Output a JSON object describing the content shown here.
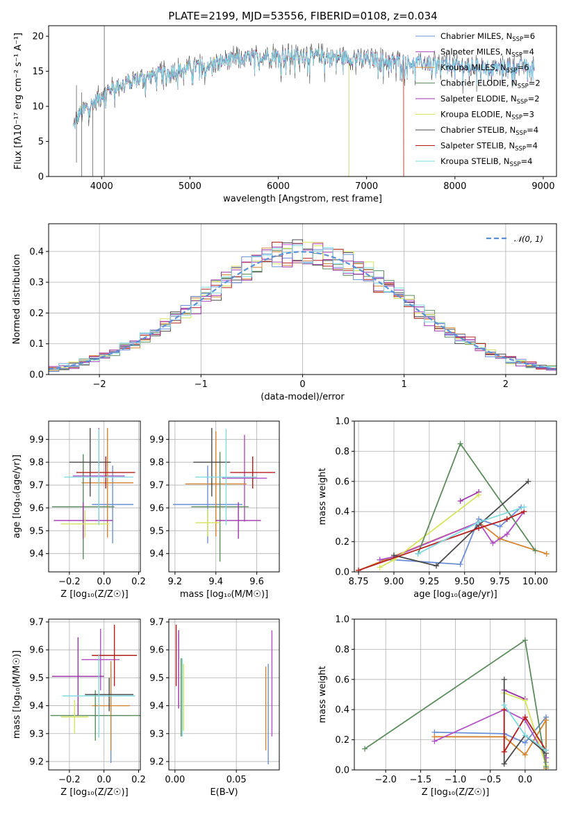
{
  "title": "PLATE=2199, MJD=53556, FIBERID=0108, z=0.034",
  "colors": [
    "#6b8fd6",
    "#b04fc4",
    "#d4832e",
    "#5c8c5c",
    "#9a33a8",
    "#d6e35c",
    "#4a4a4a",
    "#b51c1c",
    "#7fd9df"
  ],
  "chart_data": [
    {
      "id": "spectrum",
      "type": "line",
      "xlabel": "wavelength [Angstrom, rest frame]",
      "ylabel": "Flux [fλ10⁻¹⁷ erg cm⁻² s⁻¹ A⁻¹]",
      "xlim": [
        3400,
        9150
      ],
      "ylim": [
        0,
        21.5
      ],
      "xticks": [
        "4000",
        "5000",
        "6000",
        "7000",
        "8000",
        "9000"
      ],
      "xtickvals": [
        4000,
        5000,
        6000,
        7000,
        8000,
        9000
      ],
      "yticks": [
        "0",
        "5",
        "10",
        "15",
        "20"
      ],
      "ytickvals": [
        0,
        5,
        10,
        15,
        20
      ],
      "legend_position": "upper-right",
      "series": [
        {
          "name": "Chabrier MILES, N_SSP=6",
          "legend": "Chabrier MILES, N",
          "sub": "SSP",
          "suffix": "=6"
        },
        {
          "name": "Salpeter MILES, N_SSP=4",
          "legend": "Salpeter MILES, N",
          "sub": "SSP",
          "suffix": "=4"
        },
        {
          "name": "Kroupa MILES, N_SSP=6",
          "legend": "Kroupa MILES, N",
          "sub": "SSP",
          "suffix": "=6"
        },
        {
          "name": "Chabrier ELODIE, N_SSP=2",
          "legend": "Chabrier ELODIE, N",
          "sub": "SSP",
          "suffix": "=2"
        },
        {
          "name": "Salpeter ELODIE, N_SSP=2",
          "legend": "Salpeter ELODIE, N",
          "sub": "SSP",
          "suffix": "=2"
        },
        {
          "name": "Kroupa ELODIE, N_SSP=3",
          "legend": "Kroupa ELODIE, N",
          "sub": "SSP",
          "suffix": "=3"
        },
        {
          "name": "Chabrier STELIB, N_SSP=4",
          "legend": "Chabrier STELIB, N",
          "sub": "SSP",
          "suffix": "=4"
        },
        {
          "name": "Salpeter STELIB, N_SSP=4",
          "legend": "Salpeter STELIB, N",
          "sub": "SSP",
          "suffix": "=4"
        },
        {
          "name": "Kroupa STELIB, N_SSP=4",
          "legend": "Kroupa STELIB, N",
          "sub": "SSP",
          "suffix": "=4"
        }
      ],
      "continuum": [
        [
          3680,
          7
        ],
        [
          3750,
          9
        ],
        [
          3900,
          10.5
        ],
        [
          4000,
          11.5
        ],
        [
          4100,
          12.5
        ],
        [
          4300,
          13.5
        ],
        [
          4600,
          14.5
        ],
        [
          5000,
          15.5
        ],
        [
          5500,
          16.8
        ],
        [
          6000,
          17.3
        ],
        [
          6500,
          17.2
        ],
        [
          7000,
          16.8
        ],
        [
          7500,
          16.3
        ],
        [
          8000,
          15.8
        ],
        [
          8500,
          15.6
        ],
        [
          8900,
          15.8
        ]
      ]
    },
    {
      "id": "residuals",
      "type": "histogram",
      "xlabel": "(data-model)/error",
      "ylabel": "Normed distribution",
      "xlim": [
        -2.5,
        2.5
      ],
      "ylim": [
        0,
        0.49
      ],
      "xticks": [
        "−2",
        "−1",
        "0",
        "1",
        "2"
      ],
      "xtickvals": [
        -2,
        -1,
        0,
        1,
        2
      ],
      "yticks": [
        "0.0",
        "0.1",
        "0.2",
        "0.3",
        "0.4"
      ],
      "ytickvals": [
        0,
        0.1,
        0.2,
        0.3,
        0.4
      ],
      "bin_width": 0.1,
      "legend": "𝒩(0, 1)",
      "legend_position": "upper-right",
      "grid": true
    },
    {
      "id": "age-vs-Z",
      "type": "errorbar",
      "xlabel": "Z [log₁₀(Z/Z☉)]",
      "ylabel": "age  [log₁₀(age/yr)]",
      "xlim": [
        -0.32,
        0.21
      ],
      "ylim": [
        9.32,
        9.98
      ],
      "xticks": [
        "−0.2",
        "0.0",
        "0.2"
      ],
      "xtickvals": [
        -0.2,
        0,
        0.2
      ],
      "yticks": [
        "9.4",
        "9.5",
        "9.6",
        "9.7",
        "9.8",
        "9.9"
      ],
      "ytickvals": [
        9.4,
        9.5,
        9.6,
        9.7,
        9.8,
        9.9
      ],
      "grid": true,
      "points": [
        {
          "x": 0.05,
          "xerr": 0.12,
          "y": 9.615,
          "yerr": 0.17,
          "c": 0
        },
        {
          "x": -0.03,
          "xerr": 0.15,
          "y": 9.74,
          "yerr": 0.21,
          "c": 1
        },
        {
          "x": 0.02,
          "xerr": 0.15,
          "y": 9.71,
          "yerr": 0.24,
          "c": 2
        },
        {
          "x": -0.12,
          "xerr": 0.18,
          "y": 9.605,
          "yerr": 0.23,
          "c": 3
        },
        {
          "x": -0.12,
          "xerr": 0.17,
          "y": 9.545,
          "yerr": 0.08,
          "c": 4
        },
        {
          "x": -0.11,
          "xerr": 0.14,
          "y": 9.53,
          "yerr": 0.06,
          "c": 5
        },
        {
          "x": -0.08,
          "xerr": 0.12,
          "y": 9.8,
          "yerr": 0.15,
          "c": 6
        },
        {
          "x": 0.01,
          "xerr": 0.17,
          "y": 9.755,
          "yerr": 0.07,
          "c": 7
        },
        {
          "x": -0.03,
          "xerr": 0.2,
          "y": 9.735,
          "yerr": 0.21,
          "c": 8
        }
      ]
    },
    {
      "id": "age-vs-mass",
      "type": "errorbar",
      "xlabel": "mass [log₁₀(M/M☉)]",
      "ylabel": "",
      "xlim": [
        9.17,
        9.71
      ],
      "ylim": [
        9.32,
        9.98
      ],
      "xticks": [
        "9.2",
        "9.4",
        "9.6"
      ],
      "xtickvals": [
        9.2,
        9.4,
        9.6
      ],
      "yticks": [
        "9.4",
        "9.5",
        "9.6",
        "9.7",
        "9.8",
        "9.9"
      ],
      "ytickvals": [
        9.4,
        9.5,
        9.6,
        9.7,
        9.8,
        9.9
      ],
      "grid": true,
      "points": [
        {
          "x": 9.36,
          "xerr": 0.17,
          "y": 9.615,
          "yerr": 0.17,
          "c": 0
        },
        {
          "x": 9.54,
          "xerr": 0.11,
          "y": 9.73,
          "yerr": 0.19,
          "c": 1
        },
        {
          "x": 9.4,
          "xerr": 0.15,
          "y": 9.705,
          "yerr": 0.23,
          "c": 2
        },
        {
          "x": 9.42,
          "xerr": 0.14,
          "y": 9.605,
          "yerr": 0.24,
          "c": 3
        },
        {
          "x": 9.51,
          "xerr": 0.11,
          "y": 9.545,
          "yerr": 0.08,
          "c": 4
        },
        {
          "x": 9.36,
          "xerr": 0.06,
          "y": 9.535,
          "yerr": 0.06,
          "c": 5
        },
        {
          "x": 9.38,
          "xerr": 0.09,
          "y": 9.8,
          "yerr": 0.15,
          "c": 6
        },
        {
          "x": 9.58,
          "xerr": 0.11,
          "y": 9.755,
          "yerr": 0.07,
          "c": 7
        },
        {
          "x": 9.45,
          "xerr": 0.15,
          "y": 9.735,
          "yerr": 0.21,
          "c": 8
        }
      ]
    },
    {
      "id": "weight-vs-age",
      "type": "line",
      "xlabel": "age  [log₁₀(age/yr)]",
      "ylabel": "mass weight",
      "xlim": [
        8.72,
        10.15
      ],
      "ylim": [
        0,
        1
      ],
      "xticks": [
        "8.75",
        "9.00",
        "9.25",
        "9.50",
        "9.75",
        "10.00"
      ],
      "xtickvals": [
        8.75,
        9.0,
        9.25,
        9.5,
        9.75,
        10.0
      ],
      "yticks": [
        "0.0",
        "0.2",
        "0.4",
        "0.6",
        "0.8",
        "1.0"
      ],
      "ytickvals": [
        0,
        0.2,
        0.4,
        0.6,
        0.8,
        1.0
      ],
      "grid": true,
      "series": [
        {
          "c": 0,
          "pts": [
            [
              8.9,
              0.08
            ],
            [
              9.0,
              0.08
            ],
            [
              9.47,
              0.05
            ],
            [
              9.6,
              0.35
            ],
            [
              9.75,
              0.3
            ],
            [
              9.9,
              0.43
            ]
          ]
        },
        {
          "c": 2,
          "pts": [
            [
              8.75,
              0.01
            ],
            [
              9.6,
              0.33
            ],
            [
              9.75,
              0.22
            ],
            [
              10.08,
              0.12
            ]
          ]
        },
        {
          "c": 1,
          "pts": [
            [
              8.9,
              0.08
            ],
            [
              9.0,
              0.1
            ],
            [
              9.6,
              0.33
            ],
            [
              9.7,
              0.19
            ],
            [
              9.8,
              0.25
            ],
            [
              9.92,
              0.4
            ]
          ]
        },
        {
          "c": 4,
          "pts": [
            [
              9.47,
              0.47
            ],
            [
              9.6,
              0.53
            ]
          ]
        },
        {
          "c": 5,
          "pts": [
            [
              8.9,
              0.03
            ],
            [
              9.0,
              0.08
            ],
            [
              9.6,
              0.51
            ]
          ]
        },
        {
          "c": 3,
          "pts": [
            [
              9.17,
              0.12
            ],
            [
              9.47,
              0.85
            ],
            [
              10.0,
              0.14
            ]
          ]
        },
        {
          "c": 6,
          "pts": [
            [
              9.0,
              0.11
            ],
            [
              9.3,
              0.04
            ],
            [
              9.6,
              0.31
            ],
            [
              9.95,
              0.6
            ]
          ]
        },
        {
          "c": 7,
          "pts": [
            [
              8.75,
              0.01
            ],
            [
              9.6,
              0.29
            ],
            [
              9.8,
              0.35
            ],
            [
              9.92,
              0.4
            ]
          ]
        },
        {
          "c": 8,
          "pts": [
            [
              9.17,
              0.12
            ],
            [
              9.6,
              0.33
            ],
            [
              9.92,
              0.43
            ]
          ]
        }
      ]
    },
    {
      "id": "mass-vs-Z",
      "type": "errorbar",
      "xlabel": "Z [log₁₀(Z/Z☉)]",
      "ylabel": "mass [log₁₀(M/M☉)]",
      "xlim": [
        -0.32,
        0.21
      ],
      "ylim": [
        9.17,
        9.71
      ],
      "xticks": [
        "−0.2",
        "0.0",
        "0.2"
      ],
      "xtickvals": [
        -0.2,
        0,
        0.2
      ],
      "yticks": [
        "9.2",
        "9.3",
        "9.4",
        "9.5",
        "9.6",
        "9.7"
      ],
      "ytickvals": [
        9.2,
        9.3,
        9.4,
        9.5,
        9.6,
        9.7
      ],
      "grid": true,
      "points": [
        {
          "x": 0.04,
          "xerr": 0.11,
          "y": 9.365,
          "yerr": 0.17,
          "c": 0
        },
        {
          "x": -0.02,
          "xerr": 0.11,
          "y": 9.565,
          "yerr": 0.11,
          "c": 1
        },
        {
          "x": 0.04,
          "xerr": 0.11,
          "y": 9.4,
          "yerr": 0.16,
          "c": 2
        },
        {
          "x": -0.05,
          "xerr": 0.26,
          "y": 9.365,
          "yerr": 0.09,
          "c": 3
        },
        {
          "x": -0.15,
          "xerr": 0.15,
          "y": 9.505,
          "yerr": 0.14,
          "c": 4
        },
        {
          "x": -0.17,
          "xerr": 0.08,
          "y": 9.36,
          "yerr": 0.06,
          "c": 5
        },
        {
          "x": 0.03,
          "xerr": 0.14,
          "y": 9.44,
          "yerr": 0.06,
          "c": 6
        },
        {
          "x": 0.06,
          "xerr": 0.13,
          "y": 9.58,
          "yerr": 0.11,
          "c": 7
        },
        {
          "x": -0.03,
          "xerr": 0.21,
          "y": 9.435,
          "yerr": 0.15,
          "c": 8
        }
      ]
    },
    {
      "id": "mass-vs-EBV",
      "type": "errorbar",
      "xlabel": "E(B-V)",
      "ylabel": "",
      "xlim": [
        -0.005,
        0.085
      ],
      "ylim": [
        9.17,
        9.71
      ],
      "xticks": [
        "0.00",
        "0.05"
      ],
      "xtickvals": [
        0,
        0.05
      ],
      "yticks": [
        "9.2",
        "9.3",
        "9.4",
        "9.5",
        "9.6",
        "9.7"
      ],
      "ytickvals": [
        9.2,
        9.3,
        9.4,
        9.5,
        9.6,
        9.7
      ],
      "grid": true,
      "points": [
        {
          "x": 0.076,
          "xerr": 0,
          "y": 9.37,
          "yerr": 0.18,
          "c": 0
        },
        {
          "x": 0.079,
          "xerr": 0,
          "y": 9.48,
          "yerr": 0.19,
          "c": 1
        },
        {
          "x": 0.074,
          "xerr": 0,
          "y": 9.39,
          "yerr": 0.15,
          "c": 2
        },
        {
          "x": 0.005,
          "xerr": 0,
          "y": 9.43,
          "yerr": 0.14,
          "c": 3
        },
        {
          "x": 0.003,
          "xerr": 0,
          "y": 9.53,
          "yerr": 0.14,
          "c": 4
        },
        {
          "x": 0.007,
          "xerr": 0,
          "y": 9.43,
          "yerr": 0.12,
          "c": 5
        },
        {
          "x": 0.001,
          "xerr": 0,
          "y": 9.58,
          "yerr": 0.11,
          "c": 7
        },
        {
          "x": 0.006,
          "xerr": 0,
          "y": 9.43,
          "yerr": 0.14,
          "c": 8
        }
      ]
    },
    {
      "id": "weight-vs-Z",
      "type": "line",
      "xlabel": "Z [log₁₀(Z/Z☉)]",
      "ylabel": "mass weight",
      "xlim": [
        -2.45,
        0.45
      ],
      "ylim": [
        0,
        1
      ],
      "xticks": [
        "−2.0",
        "−1.5",
        "−1.0",
        "−0.5",
        "0.0"
      ],
      "xtickvals": [
        -2.0,
        -1.5,
        -1.0,
        -0.5,
        0
      ],
      "yticks": [
        "0.0",
        "0.2",
        "0.4",
        "0.6",
        "0.8",
        "1.0"
      ],
      "ytickvals": [
        0,
        0.2,
        0.4,
        0.6,
        0.8,
        1.0
      ],
      "grid": true,
      "series": [
        {
          "c": 0,
          "pts": [
            [
              -1.3,
              0.25
            ],
            [
              -0.3,
              0.24
            ],
            [
              0.0,
              0.18
            ],
            [
              0.3,
              0.35
            ],
            [
              0.3,
              0.05
            ]
          ]
        },
        {
          "c": 2,
          "pts": [
            [
              -1.3,
              0.22
            ],
            [
              -0.3,
              0.22
            ],
            [
              0.0,
              0.1
            ],
            [
              0.3,
              0.33
            ],
            [
              0.3,
              0.01
            ]
          ]
        },
        {
          "c": 1,
          "pts": [
            [
              -1.3,
              0.19
            ],
            [
              -0.3,
              0.4
            ],
            [
              0.0,
              0.33
            ],
            [
              0.3,
              0.08
            ]
          ]
        },
        {
          "c": 4,
          "pts": [
            [
              -0.3,
              0.53
            ],
            [
              0.0,
              0.47
            ]
          ]
        },
        {
          "c": 5,
          "pts": [
            [
              -0.3,
              0.51
            ],
            [
              0.0,
              0.46
            ],
            [
              0.3,
              0.03
            ]
          ]
        },
        {
          "c": 3,
          "pts": [
            [
              -2.3,
              0.14
            ],
            [
              0.0,
              0.86
            ],
            [
              0.3,
              0.02
            ]
          ]
        },
        {
          "c": 6,
          "pts": [
            [
              -0.3,
              0.6
            ],
            [
              -0.3,
              0.04
            ],
            [
              0.0,
              0.23
            ],
            [
              0.3,
              0.11
            ]
          ]
        },
        {
          "c": 7,
          "pts": [
            [
              -0.3,
              0.4
            ],
            [
              -0.3,
              0.12
            ],
            [
              0.0,
              0.35
            ],
            [
              0.3,
              0.13
            ]
          ]
        },
        {
          "c": 8,
          "pts": [
            [
              -0.3,
              0.43
            ],
            [
              0.0,
              0.23
            ],
            [
              0.3,
              0.13
            ]
          ]
        }
      ]
    }
  ]
}
